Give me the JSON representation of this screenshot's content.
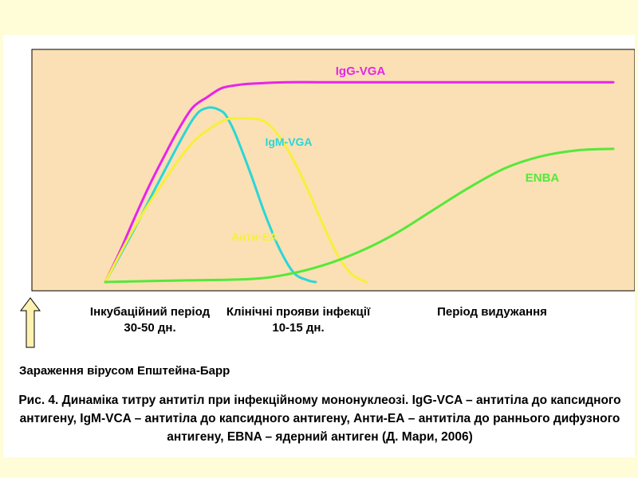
{
  "colors": {
    "plot_background": "#fae0b4",
    "page_background": "#fffdd8",
    "igg": "#e625e8",
    "igm": "#2ad6d8",
    "anti_ea": "#f8ef3a",
    "ebna": "#55e83a",
    "arrow_fill": "#fff2b0"
  },
  "chart_data": {
    "type": "line",
    "title": "",
    "xlabel": "",
    "ylabel": "",
    "series": [
      {
        "name": "IgG-VGA",
        "color": "#e625e8",
        "x": [
          0,
          2,
          4,
          6,
          8,
          10,
          12,
          14,
          16,
          18,
          20,
          25,
          30,
          40,
          50,
          60,
          70
        ],
        "y": [
          0,
          20,
          42,
          63,
          82,
          100,
          115,
          122,
          128,
          130,
          131,
          132,
          132,
          132,
          132,
          132,
          132
        ]
      },
      {
        "name": "IgM-VGA",
        "color": "#2ad6d8",
        "x": [
          0,
          4,
          8,
          12,
          14,
          16,
          17,
          18,
          20,
          22,
          24,
          26,
          28,
          29
        ],
        "y": [
          0,
          35,
          72,
          107,
          115,
          113,
          107,
          97,
          72,
          45,
          22,
          6,
          1,
          0
        ]
      },
      {
        "name": "Анти-ЕА",
        "color": "#f8ef3a",
        "x": [
          0,
          4,
          8,
          12,
          16,
          18,
          20,
          22,
          24,
          26,
          28,
          30,
          32,
          34,
          36
        ],
        "y": [
          0,
          36,
          66,
          92,
          106,
          108,
          108,
          106,
          96,
          80,
          60,
          38,
          18,
          5,
          0
        ]
      },
      {
        "name": "ENBA",
        "color": "#55e83a",
        "x": [
          0,
          10,
          20,
          25,
          30,
          35,
          40,
          45,
          50,
          55,
          60,
          65,
          70
        ],
        "y": [
          0,
          1,
          2,
          5,
          11,
          20,
          32,
          47,
          62,
          75,
          83,
          87,
          88
        ]
      }
    ],
    "annotations": [
      "Інкубаційний період 30-50 дн.",
      "Клінічні прояви інфекції 10-15 дн.",
      "Період видужання",
      "Зараження вірусом Епштейна-Барр"
    ]
  },
  "labels": {
    "incubation_line1": "Інкубаційний період",
    "incubation_line2": "30-50 дн.",
    "clinical_line1": "Клінічні прояви інфекції",
    "clinical_line2": "10-15 дн.",
    "recovery": "Період видужання",
    "infection": "Зараження вірусом Епштейна-Барр"
  },
  "caption": {
    "line1": "Рис. 4. Динаміка титру антитіл при інфекційному мононуклеозі. IgG-VCA –  антитіла до капсидного",
    "line2": "антигену, IgM-VCA – антитіла до капсидного антигену, Анти-ЕА – антитіла до раннього дифузного",
    "line3": "антигену, ЕВNA – ядерний антиген (Д. Мари, 2006)"
  }
}
